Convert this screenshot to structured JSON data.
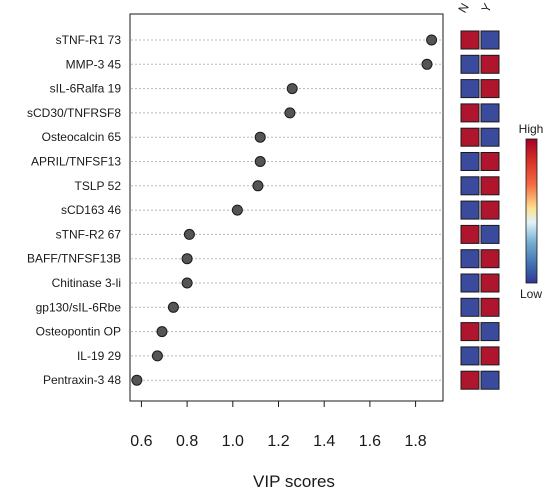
{
  "chart_data": {
    "type": "scatter",
    "xlabel": "VIP scores",
    "xlim": [
      0.55,
      1.92
    ],
    "xticks": [
      0.6,
      0.8,
      1.0,
      1.2,
      1.4,
      1.6,
      1.8
    ],
    "xtick_labels": [
      "0.6",
      "0.8",
      "1.0",
      "1.2",
      "1.4",
      "1.6",
      "1.8"
    ],
    "grid": "horizontal dotted",
    "items": [
      {
        "label": "sTNF-R1 73",
        "vip": 1.87,
        "N": "high",
        "Y": "low"
      },
      {
        "label": "MMP-3 45",
        "vip": 1.85,
        "N": "low",
        "Y": "high"
      },
      {
        "label": "sIL-6Ralfa 19",
        "vip": 1.26,
        "N": "low",
        "Y": "high"
      },
      {
        "label": "sCD30/TNFRSF8",
        "vip": 1.25,
        "N": "high",
        "Y": "low"
      },
      {
        "label": "Osteocalcin 65",
        "vip": 1.12,
        "N": "high",
        "Y": "low"
      },
      {
        "label": "APRIL/TNFSF13",
        "vip": 1.12,
        "N": "low",
        "Y": "high"
      },
      {
        "label": "TSLP 52",
        "vip": 1.11,
        "N": "low",
        "Y": "high"
      },
      {
        "label": "sCD163 46",
        "vip": 1.02,
        "N": "low",
        "Y": "high"
      },
      {
        "label": "sTNF-R2 67",
        "vip": 0.81,
        "N": "high",
        "Y": "low"
      },
      {
        "label": "BAFF/TNFSF13B",
        "vip": 0.8,
        "N": "low",
        "Y": "high"
      },
      {
        "label": "Chitinase 3-li",
        "vip": 0.8,
        "N": "low",
        "Y": "high"
      },
      {
        "label": "gp130/sIL-6Rbe",
        "vip": 0.74,
        "N": "low",
        "Y": "high"
      },
      {
        "label": "Osteopontin OP",
        "vip": 0.69,
        "N": "high",
        "Y": "low"
      },
      {
        "label": "IL-19 29",
        "vip": 0.67,
        "N": "low",
        "Y": "high"
      },
      {
        "label": "Pentraxin-3 48",
        "vip": 0.58,
        "N": "high",
        "Y": "low"
      }
    ],
    "heatmap_columns": [
      "N",
      "Y"
    ],
    "legend": {
      "high_label": "High",
      "low_label": "Low",
      "placement": "right"
    }
  },
  "colors": {
    "high": "#b0152e",
    "low": "#3a4b9e",
    "dot": "#555555",
    "dot_stroke": "#1a1a1a",
    "grid": "#b8b8b8"
  }
}
